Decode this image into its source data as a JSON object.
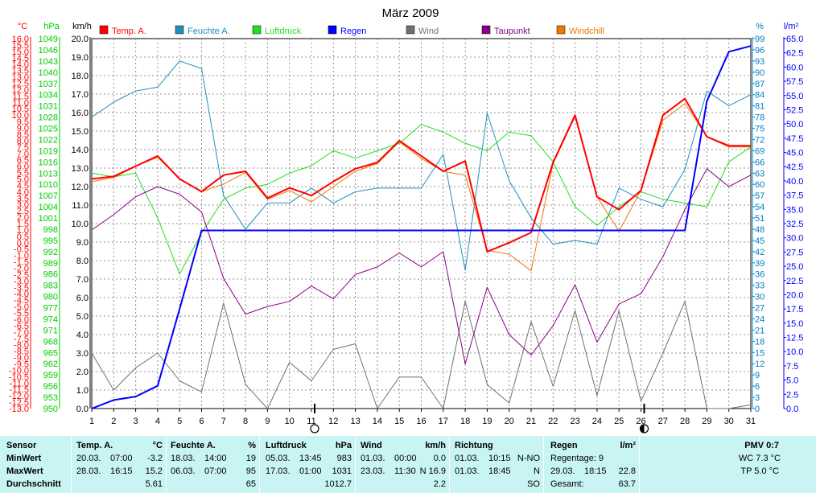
{
  "chart_data": {
    "type": "line",
    "title": "März 2009",
    "x": [
      1,
      2,
      3,
      4,
      5,
      6,
      7,
      8,
      9,
      10,
      11,
      12,
      13,
      14,
      15,
      16,
      17,
      18,
      19,
      20,
      21,
      22,
      23,
      24,
      25,
      26,
      27,
      28,
      29,
      30,
      31
    ],
    "axes": {
      "temp": {
        "unit": "°C",
        "range": [
          -13.0,
          16.0
        ],
        "step": 0.5,
        "color": "#ff0000"
      },
      "hpa": {
        "unit": "hPa",
        "range": [
          950,
          1049
        ],
        "step": 3,
        "color": "#00cc00"
      },
      "kmh": {
        "unit": "km/h",
        "range": [
          0.0,
          20.0
        ],
        "step": 1.0,
        "color": "#000000"
      },
      "hum": {
        "unit": "%",
        "range": [
          0,
          99
        ],
        "step": 3,
        "color": "#0080c0"
      },
      "rain": {
        "unit": "l/m²",
        "range": [
          0.0,
          65.0
        ],
        "step": 2.5,
        "color": "#0000ff"
      }
    },
    "series": [
      {
        "name": "Temp. A.",
        "axis": "temp",
        "color": "#ff0000",
        "width": 2,
        "values": [
          5.0,
          5.2,
          6.0,
          6.8,
          5.0,
          4.0,
          5.3,
          5.6,
          3.5,
          4.3,
          3.7,
          4.8,
          5.8,
          6.3,
          8.0,
          6.8,
          5.6,
          6.4,
          -0.7,
          0.0,
          0.8,
          6.3,
          10.0,
          3.6,
          2.6,
          4.1,
          10.0,
          11.3,
          8.3,
          7.6,
          7.6
        ]
      },
      {
        "name": "Feuchte A.",
        "axis": "hum",
        "color": "#1e8fc0",
        "width": 1,
        "values": [
          78,
          82,
          85,
          86,
          93,
          91,
          57,
          48,
          55,
          55,
          59,
          55,
          58,
          59,
          59,
          59,
          68,
          37,
          79,
          61,
          51,
          44,
          45,
          44,
          59,
          56,
          54,
          64,
          85,
          81,
          84
        ]
      },
      {
        "name": "Luftdruck",
        "axis": "hpa",
        "color": "#22dd22",
        "width": 1,
        "values": [
          1013,
          1012,
          1013,
          1001,
          986,
          997,
          1006,
          1009,
          1010,
          1013,
          1015,
          1019,
          1017,
          1019,
          1021,
          1026,
          1024,
          1021,
          1019,
          1024,
          1023,
          1016,
          1004,
          999,
          1004,
          1008,
          1006,
          1005,
          1004,
          1016,
          1020
        ]
      },
      {
        "name": "Regen",
        "axis": "rain",
        "color": "#0000ff",
        "width": 2,
        "values": [
          0.0,
          1.5,
          2.1,
          4.0,
          17.5,
          31.3,
          31.3,
          31.3,
          31.3,
          31.3,
          31.3,
          31.3,
          31.3,
          31.3,
          31.3,
          31.3,
          31.3,
          31.3,
          31.3,
          31.3,
          31.3,
          31.3,
          31.3,
          31.3,
          31.3,
          31.3,
          31.3,
          31.3,
          54.0,
          62.7,
          63.7
        ]
      },
      {
        "name": "Wind",
        "axis": "kmh",
        "color": "#707070",
        "width": 1,
        "values": [
          3.0,
          1.0,
          2.2,
          3.0,
          1.5,
          0.9,
          5.7,
          1.3,
          0.0,
          2.5,
          1.5,
          3.2,
          3.5,
          0.0,
          1.7,
          1.7,
          0.0,
          5.8,
          1.3,
          0.3,
          4.7,
          1.2,
          5.3,
          0.7,
          5.3,
          0.4,
          3.0,
          5.8,
          0.0,
          0.0,
          0.2
        ]
      },
      {
        "name": "Taupunkt",
        "axis": "temp",
        "color": "#880088",
        "width": 1,
        "values": [
          1.0,
          2.2,
          3.6,
          4.4,
          3.8,
          2.4,
          -2.8,
          -5.6,
          -5.0,
          -4.6,
          -3.4,
          -4.4,
          -2.5,
          -1.9,
          -0.8,
          -1.9,
          -0.7,
          -9.5,
          -3.5,
          -7.2,
          -8.8,
          -6.5,
          -3.3,
          -7.8,
          -4.8,
          -4.0,
          -1.1,
          2.6,
          5.8,
          4.4,
          5.3
        ]
      },
      {
        "name": "Windchill",
        "axis": "temp",
        "color": "#ee7700",
        "width": 1,
        "values": [
          4.8,
          5.1,
          6.0,
          6.7,
          5.0,
          4.0,
          4.6,
          5.5,
          3.4,
          4.1,
          3.2,
          4.4,
          5.6,
          6.2,
          7.9,
          6.6,
          5.6,
          5.3,
          -0.6,
          -0.9,
          -2.2,
          6.2,
          9.9,
          3.6,
          0.9,
          4.1,
          9.6,
          10.9,
          8.3,
          7.5,
          7.5
        ]
      }
    ],
    "moon": [
      {
        "day": 11,
        "phase": "full"
      },
      {
        "day": 26,
        "phase": "new"
      }
    ],
    "xticks": [
      "1",
      "2",
      "3",
      "4",
      "5",
      "6",
      "7",
      "8",
      "9",
      "10",
      "11",
      "12",
      "13",
      "14",
      "15",
      "16",
      "17",
      "18",
      "19",
      "20",
      "21",
      "22",
      "23",
      "24",
      "25",
      "26",
      "27",
      "28",
      "29",
      "30",
      "31"
    ]
  },
  "stats": {
    "sensor": {
      "header": "Sensor",
      "rows": [
        "MinWert",
        "MaxWert",
        "Durchschnitt"
      ]
    },
    "temp": {
      "header": "Temp. A.",
      "unit": "°C",
      "min": {
        "date": "20.03.",
        "time": "07:00",
        "val": "-3.2"
      },
      "max": {
        "date": "28.03.",
        "time": "16:15",
        "val": "15.2"
      },
      "avg": "5.61"
    },
    "hum": {
      "header": "Feuchte A.",
      "unit": "%",
      "min": {
        "date": "18.03.",
        "time": "14:00",
        "val": "19"
      },
      "max": {
        "date": "06.03.",
        "time": "07:00",
        "val": "95"
      },
      "avg": "65"
    },
    "press": {
      "header": "Luftdruck",
      "unit": "hPa",
      "min": {
        "date": "05.03.",
        "time": "13:45",
        "val": "983"
      },
      "max": {
        "date": "17.03.",
        "time": "01:00",
        "val": "1031"
      },
      "avg": "1012.7"
    },
    "wind": {
      "header": "Wind",
      "unit": "km/h",
      "min": {
        "date": "01.03.",
        "time": "00:00",
        "val": "0.0"
      },
      "max": {
        "date": "23.03.",
        "time": "11:30",
        "val": "N 16.9"
      },
      "avg": "2.2"
    },
    "dir": {
      "header": "Richtung",
      "min": {
        "date": "01.03.",
        "time": "10:15",
        "val": "N-NO"
      },
      "max": {
        "date": "01.03.",
        "time": "18:45",
        "val": "N"
      },
      "avg": "SO"
    },
    "rain": {
      "header": "Regen",
      "unit": "l/m²",
      "r1": "Regentage: 9",
      "r2": {
        "date": "29.03.",
        "time": "18:15",
        "val": "22.8"
      },
      "r3": {
        "label": "Gesamt:",
        "val": "63.7"
      }
    },
    "pmv": {
      "header": "PMV 0:7",
      "wc": "WC 7.3 °C",
      "tp": "TP 5.0 °C"
    }
  }
}
